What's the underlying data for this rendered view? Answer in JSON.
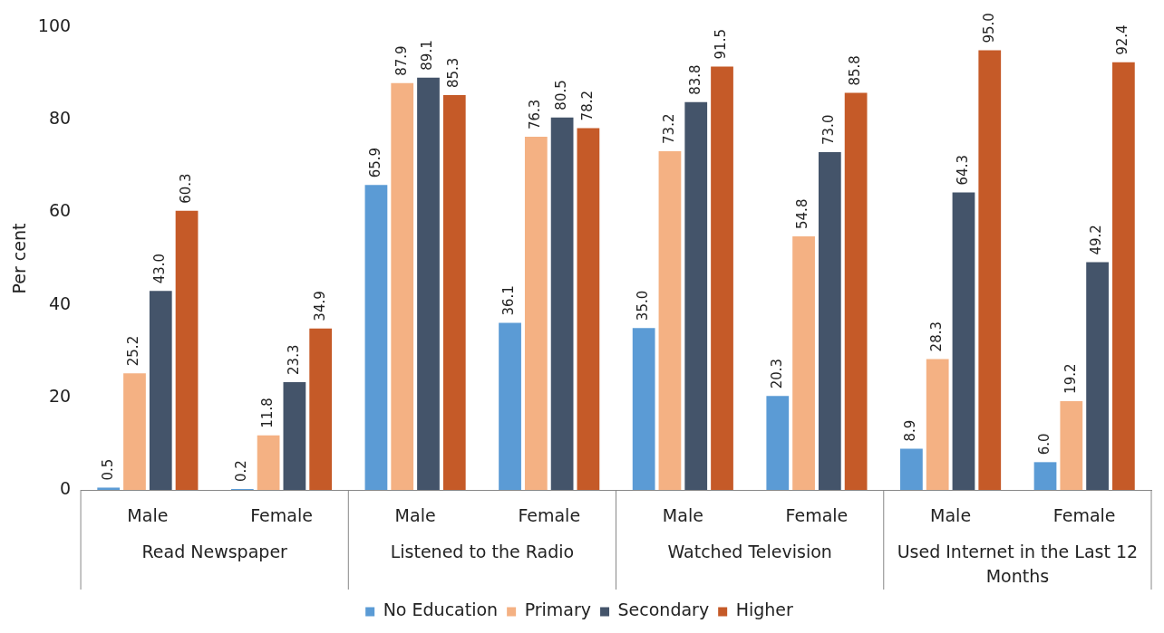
{
  "chart_data": {
    "type": "bar",
    "ylabel": "Per cent",
    "categories": [
      "Male",
      "Female",
      "Male",
      "Female",
      "Male",
      "Female",
      "Male",
      "Female"
    ],
    "annotations": [
      "Read Newspaper",
      "Listened to the Radio",
      "Watched Television",
      "Used Internet in the Last 12 Months"
    ],
    "series": [
      {
        "name": "No Education",
        "color": "#5b9bd5",
        "values": [
          0.5,
          0.2,
          65.9,
          36.1,
          35.0,
          20.3,
          8.9,
          6.0
        ],
        "value_labels": [
          "0.5",
          "0.2",
          "65.9",
          "36.1",
          "35.0",
          "20.3",
          "8.9",
          "6.0"
        ]
      },
      {
        "name": "Primary",
        "color": "#f4b183",
        "values": [
          25.2,
          11.8,
          87.9,
          76.3,
          73.2,
          54.8,
          28.3,
          19.2
        ],
        "value_labels": [
          "25.2",
          "11.8",
          "87.9",
          "76.3",
          "73.2",
          "54.8",
          "28.3",
          "19.2"
        ]
      },
      {
        "name": "Secondary",
        "color": "#44546a",
        "values": [
          43.0,
          23.3,
          89.1,
          80.5,
          83.8,
          73.0,
          64.3,
          49.2
        ],
        "value_labels": [
          "43.0",
          "23.3",
          "89.1",
          "80.5",
          "83.8",
          "73.0",
          "64.3",
          "49.2"
        ]
      },
      {
        "name": "Higher",
        "color": "#c55a28",
        "values": [
          60.3,
          34.9,
          85.3,
          78.2,
          91.5,
          85.8,
          95.0,
          92.4
        ],
        "value_labels": [
          "60.3",
          "34.9",
          "85.3",
          "78.2",
          "91.5",
          "85.8",
          "95.0",
          "92.4"
        ]
      }
    ],
    "ylim": [
      0,
      100
    ],
    "yticks": [
      0,
      20,
      40,
      60,
      80,
      100
    ],
    "grid": false,
    "legend": "bottom"
  }
}
